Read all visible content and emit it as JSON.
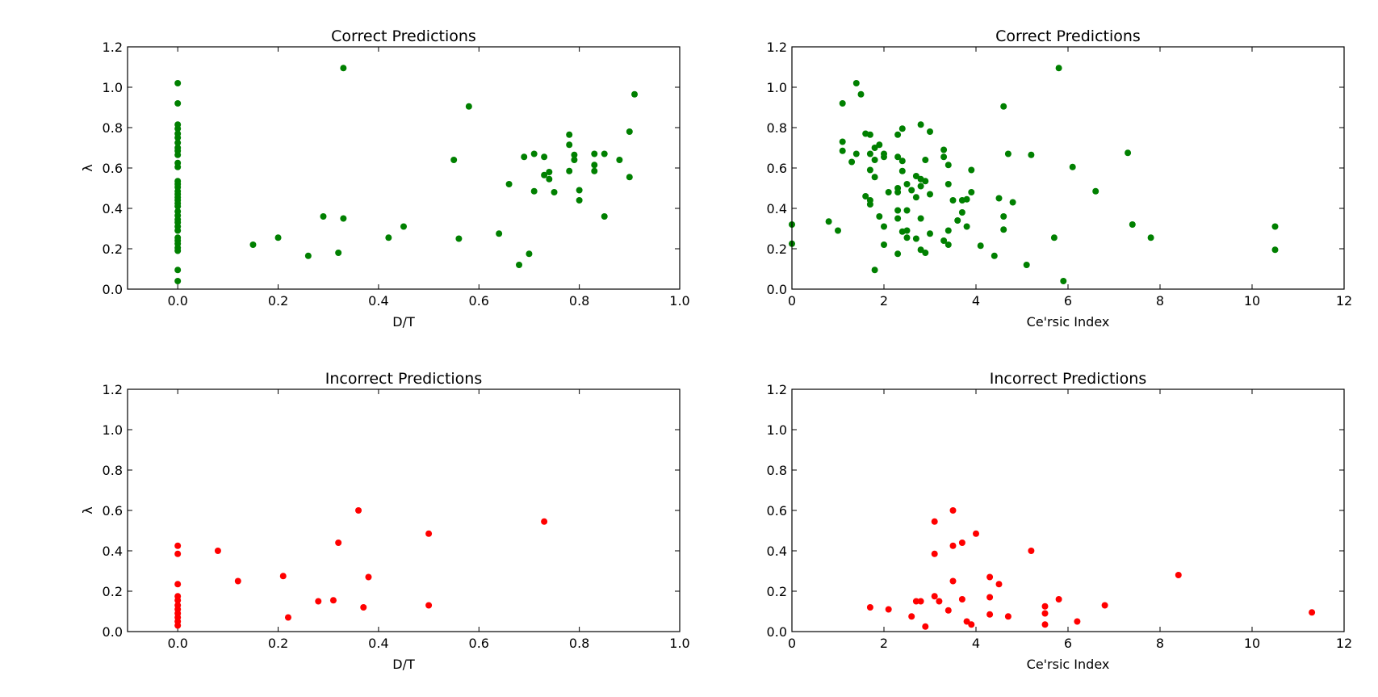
{
  "chart_data": [
    {
      "type": "scatter",
      "title": "Correct Predictions",
      "xlabel": "D/T",
      "ylabel": "λ",
      "xlim": [
        -0.1,
        1.0
      ],
      "ylim": [
        0.0,
        1.2
      ],
      "xticks": [
        "0.0",
        "0.2",
        "0.4",
        "0.6",
        "0.8",
        "1.0"
      ],
      "yticks": [
        "0.0",
        "0.2",
        "0.4",
        "0.6",
        "0.8",
        "1.0",
        "1.2"
      ],
      "color": "#008000",
      "points": [
        [
          0.0,
          1.02
        ],
        [
          0.0,
          0.92
        ],
        [
          0.0,
          0.815
        ],
        [
          0.0,
          0.795
        ],
        [
          0.0,
          0.77
        ],
        [
          0.0,
          0.75
        ],
        [
          0.0,
          0.725
        ],
        [
          0.0,
          0.7
        ],
        [
          0.0,
          0.685
        ],
        [
          0.0,
          0.665
        ],
        [
          0.0,
          0.625
        ],
        [
          0.0,
          0.605
        ],
        [
          0.0,
          0.535
        ],
        [
          0.0,
          0.52
        ],
        [
          0.0,
          0.505
        ],
        [
          0.0,
          0.485
        ],
        [
          0.0,
          0.47
        ],
        [
          0.0,
          0.455
        ],
        [
          0.0,
          0.44
        ],
        [
          0.0,
          0.425
        ],
        [
          0.0,
          0.41
        ],
        [
          0.0,
          0.385
        ],
        [
          0.0,
          0.365
        ],
        [
          0.0,
          0.345
        ],
        [
          0.0,
          0.33
        ],
        [
          0.0,
          0.31
        ],
        [
          0.0,
          0.29
        ],
        [
          0.0,
          0.255
        ],
        [
          0.0,
          0.24
        ],
        [
          0.0,
          0.225
        ],
        [
          0.0,
          0.205
        ],
        [
          0.0,
          0.19
        ],
        [
          0.0,
          0.095
        ],
        [
          0.0,
          0.04
        ],
        [
          0.15,
          0.22
        ],
        [
          0.2,
          0.255
        ],
        [
          0.26,
          0.165
        ],
        [
          0.29,
          0.36
        ],
        [
          0.32,
          0.18
        ],
        [
          0.33,
          1.095
        ],
        [
          0.33,
          0.35
        ],
        [
          0.42,
          0.255
        ],
        [
          0.45,
          0.31
        ],
        [
          0.55,
          0.64
        ],
        [
          0.56,
          0.25
        ],
        [
          0.58,
          0.905
        ],
        [
          0.64,
          0.275
        ],
        [
          0.66,
          0.52
        ],
        [
          0.68,
          0.12
        ],
        [
          0.69,
          0.655
        ],
        [
          0.7,
          0.175
        ],
        [
          0.71,
          0.67
        ],
        [
          0.71,
          0.485
        ],
        [
          0.73,
          0.655
        ],
        [
          0.73,
          0.565
        ],
        [
          0.74,
          0.58
        ],
        [
          0.74,
          0.545
        ],
        [
          0.75,
          0.48
        ],
        [
          0.78,
          0.765
        ],
        [
          0.78,
          0.715
        ],
        [
          0.78,
          0.585
        ],
        [
          0.79,
          0.665
        ],
        [
          0.79,
          0.64
        ],
        [
          0.8,
          0.49
        ],
        [
          0.8,
          0.44
        ],
        [
          0.83,
          0.67
        ],
        [
          0.83,
          0.615
        ],
        [
          0.83,
          0.585
        ],
        [
          0.85,
          0.67
        ],
        [
          0.85,
          0.36
        ],
        [
          0.88,
          0.64
        ],
        [
          0.9,
          0.78
        ],
        [
          0.9,
          0.555
        ],
        [
          0.91,
          0.965
        ]
      ]
    },
    {
      "type": "scatter",
      "title": "Correct Predictions",
      "xlabel": "Ce'rsic Index",
      "ylabel": "",
      "xlim": [
        0,
        12
      ],
      "ylim": [
        0.0,
        1.2
      ],
      "xticks": [
        "0",
        "2",
        "4",
        "6",
        "8",
        "10",
        "12"
      ],
      "yticks": [
        "0.0",
        "0.2",
        "0.4",
        "0.6",
        "0.8",
        "1.0",
        "1.2"
      ],
      "color": "#008000",
      "points": [
        [
          0.0,
          0.32
        ],
        [
          0.0,
          0.225
        ],
        [
          0.8,
          0.335
        ],
        [
          1.0,
          0.29
        ],
        [
          1.1,
          0.92
        ],
        [
          1.1,
          0.73
        ],
        [
          1.1,
          0.685
        ],
        [
          1.3,
          0.63
        ],
        [
          1.4,
          1.02
        ],
        [
          1.4,
          0.67
        ],
        [
          1.5,
          0.965
        ],
        [
          1.6,
          0.77
        ],
        [
          1.6,
          0.46
        ],
        [
          1.7,
          0.765
        ],
        [
          1.7,
          0.59
        ],
        [
          1.7,
          0.67
        ],
        [
          1.7,
          0.44
        ],
        [
          1.7,
          0.42
        ],
        [
          1.8,
          0.7
        ],
        [
          1.8,
          0.64
        ],
        [
          1.8,
          0.555
        ],
        [
          1.8,
          0.095
        ],
        [
          1.9,
          0.715
        ],
        [
          1.9,
          0.36
        ],
        [
          2.0,
          0.67
        ],
        [
          2.0,
          0.655
        ],
        [
          2.0,
          0.31
        ],
        [
          2.0,
          0.22
        ],
        [
          2.1,
          0.48
        ],
        [
          2.3,
          0.765
        ],
        [
          2.3,
          0.655
        ],
        [
          2.3,
          0.5
        ],
        [
          2.3,
          0.48
        ],
        [
          2.3,
          0.39
        ],
        [
          2.3,
          0.35
        ],
        [
          2.3,
          0.175
        ],
        [
          2.4,
          0.795
        ],
        [
          2.4,
          0.635
        ],
        [
          2.4,
          0.585
        ],
        [
          2.4,
          0.285
        ],
        [
          2.5,
          0.52
        ],
        [
          2.5,
          0.39
        ],
        [
          2.5,
          0.29
        ],
        [
          2.5,
          0.255
        ],
        [
          2.6,
          0.49
        ],
        [
          2.7,
          0.56
        ],
        [
          2.7,
          0.455
        ],
        [
          2.7,
          0.25
        ],
        [
          2.8,
          0.815
        ],
        [
          2.8,
          0.545
        ],
        [
          2.8,
          0.51
        ],
        [
          2.8,
          0.35
        ],
        [
          2.8,
          0.195
        ],
        [
          2.9,
          0.64
        ],
        [
          2.9,
          0.535
        ],
        [
          2.9,
          0.18
        ],
        [
          3.0,
          0.78
        ],
        [
          3.0,
          0.47
        ],
        [
          3.0,
          0.275
        ],
        [
          3.3,
          0.69
        ],
        [
          3.3,
          0.655
        ],
        [
          3.3,
          0.24
        ],
        [
          3.4,
          0.615
        ],
        [
          3.4,
          0.52
        ],
        [
          3.4,
          0.29
        ],
        [
          3.4,
          0.22
        ],
        [
          3.5,
          0.44
        ],
        [
          3.6,
          0.34
        ],
        [
          3.7,
          0.44
        ],
        [
          3.7,
          0.38
        ],
        [
          3.8,
          0.445
        ],
        [
          3.8,
          0.31
        ],
        [
          3.9,
          0.59
        ],
        [
          3.9,
          0.48
        ],
        [
          4.1,
          0.215
        ],
        [
          4.4,
          0.165
        ],
        [
          4.5,
          0.45
        ],
        [
          4.6,
          0.905
        ],
        [
          4.6,
          0.36
        ],
        [
          4.6,
          0.295
        ],
        [
          4.7,
          0.67
        ],
        [
          4.8,
          0.43
        ],
        [
          5.1,
          0.12
        ],
        [
          5.2,
          0.665
        ],
        [
          5.7,
          0.255
        ],
        [
          5.8,
          1.095
        ],
        [
          5.9,
          0.04
        ],
        [
          6.1,
          0.605
        ],
        [
          6.6,
          0.485
        ],
        [
          7.3,
          0.675
        ],
        [
          7.4,
          0.32
        ],
        [
          7.8,
          0.255
        ],
        [
          10.5,
          0.31
        ],
        [
          10.5,
          0.195
        ]
      ]
    },
    {
      "type": "scatter",
      "title": "Incorrect Predictions",
      "xlabel": "D/T",
      "ylabel": "λ",
      "xlim": [
        -0.1,
        1.0
      ],
      "ylim": [
        0.0,
        1.2
      ],
      "xticks": [
        "0.0",
        "0.2",
        "0.4",
        "0.6",
        "0.8",
        "1.0"
      ],
      "yticks": [
        "0.0",
        "0.2",
        "0.4",
        "0.6",
        "0.8",
        "1.0",
        "1.2"
      ],
      "color": "#ff0000",
      "points": [
        [
          0.0,
          0.425
        ],
        [
          0.0,
          0.385
        ],
        [
          0.0,
          0.235
        ],
        [
          0.0,
          0.175
        ],
        [
          0.0,
          0.155
        ],
        [
          0.0,
          0.13
        ],
        [
          0.0,
          0.11
        ],
        [
          0.0,
          0.09
        ],
        [
          0.0,
          0.07
        ],
        [
          0.0,
          0.05
        ],
        [
          0.0,
          0.03
        ],
        [
          0.08,
          0.4
        ],
        [
          0.12,
          0.25
        ],
        [
          0.21,
          0.275
        ],
        [
          0.22,
          0.07
        ],
        [
          0.28,
          0.15
        ],
        [
          0.31,
          0.155
        ],
        [
          0.32,
          0.44
        ],
        [
          0.36,
          0.6
        ],
        [
          0.37,
          0.12
        ],
        [
          0.38,
          0.27
        ],
        [
          0.5,
          0.485
        ],
        [
          0.5,
          0.13
        ],
        [
          0.73,
          0.545
        ]
      ]
    },
    {
      "type": "scatter",
      "title": "Incorrect Predictions",
      "xlabel": "Ce'rsic Index",
      "ylabel": "",
      "xlim": [
        0,
        12
      ],
      "ylim": [
        0.0,
        1.2
      ],
      "xticks": [
        "0",
        "2",
        "4",
        "6",
        "8",
        "10",
        "12"
      ],
      "yticks": [
        "0.0",
        "0.2",
        "0.4",
        "0.6",
        "0.8",
        "1.0",
        "1.2"
      ],
      "color": "#ff0000",
      "points": [
        [
          1.7,
          0.12
        ],
        [
          2.1,
          0.11
        ],
        [
          2.6,
          0.075
        ],
        [
          2.7,
          0.15
        ],
        [
          2.8,
          0.15
        ],
        [
          2.9,
          0.025
        ],
        [
          3.1,
          0.545
        ],
        [
          3.1,
          0.385
        ],
        [
          3.1,
          0.175
        ],
        [
          3.2,
          0.15
        ],
        [
          3.4,
          0.105
        ],
        [
          3.5,
          0.6
        ],
        [
          3.5,
          0.425
        ],
        [
          3.5,
          0.25
        ],
        [
          3.7,
          0.44
        ],
        [
          3.7,
          0.16
        ],
        [
          3.8,
          0.05
        ],
        [
          3.9,
          0.035
        ],
        [
          4.0,
          0.485
        ],
        [
          4.3,
          0.27
        ],
        [
          4.3,
          0.17
        ],
        [
          4.3,
          0.085
        ],
        [
          4.5,
          0.235
        ],
        [
          4.7,
          0.075
        ],
        [
          5.2,
          0.4
        ],
        [
          5.5,
          0.125
        ],
        [
          5.5,
          0.09
        ],
        [
          5.5,
          0.035
        ],
        [
          5.8,
          0.16
        ],
        [
          6.2,
          0.05
        ],
        [
          6.8,
          0.13
        ],
        [
          8.4,
          0.28
        ],
        [
          11.3,
          0.095
        ]
      ]
    }
  ]
}
